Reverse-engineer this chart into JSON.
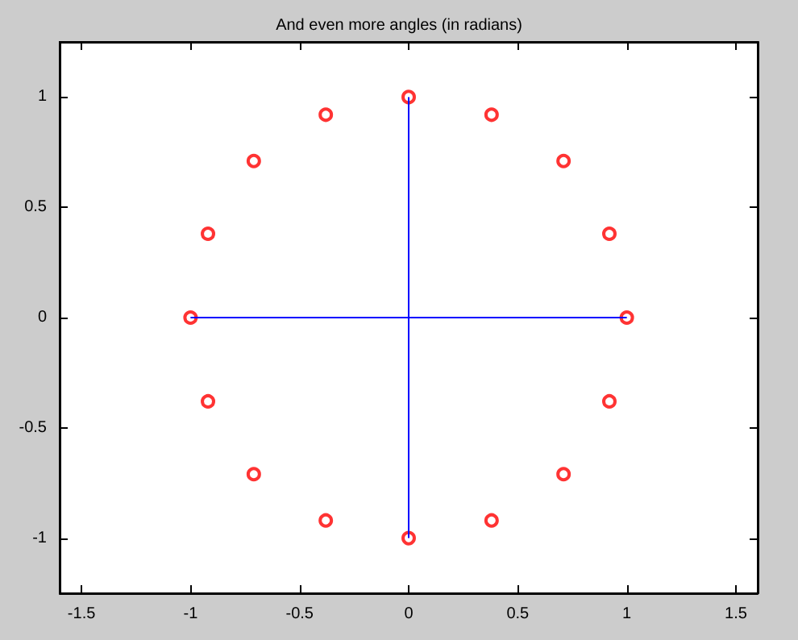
{
  "chart_data": {
    "type": "scatter",
    "title": "And even more angles (in radians)",
    "series": [
      {
        "type": "line",
        "color": "#0000ff",
        "x": [
          -1,
          1
        ],
        "values": [
          0,
          0
        ],
        "marker": "none"
      },
      {
        "type": "line",
        "color": "#0000ff",
        "x": [
          0,
          0
        ],
        "values": [
          -1,
          1
        ],
        "marker": "none"
      },
      {
        "color": "#ff0000",
        "marker": "circle",
        "x": [
          1,
          0.92,
          0.71,
          0.38,
          0,
          -0.38,
          -0.71,
          -0.92,
          -1,
          -0.92,
          -0.71,
          -0.38,
          0,
          0.38,
          0.71,
          0.92
        ],
        "values": [
          0,
          0.38,
          0.71,
          0.92,
          1,
          0.92,
          0.71,
          0.38,
          0,
          -0.38,
          -0.71,
          -0.92,
          -1,
          -0.92,
          -0.71,
          -0.38
        ]
      }
    ],
    "xlim": [
      -1.6,
      1.6
    ],
    "xticks": [
      -1.5,
      -1,
      -0.5,
      0,
      0.5,
      1,
      1.5
    ],
    "ylim": [
      -1.25,
      1.25
    ],
    "yticks": [
      -1,
      -0.5,
      0,
      0.5,
      1
    ],
    "grid": false
  }
}
